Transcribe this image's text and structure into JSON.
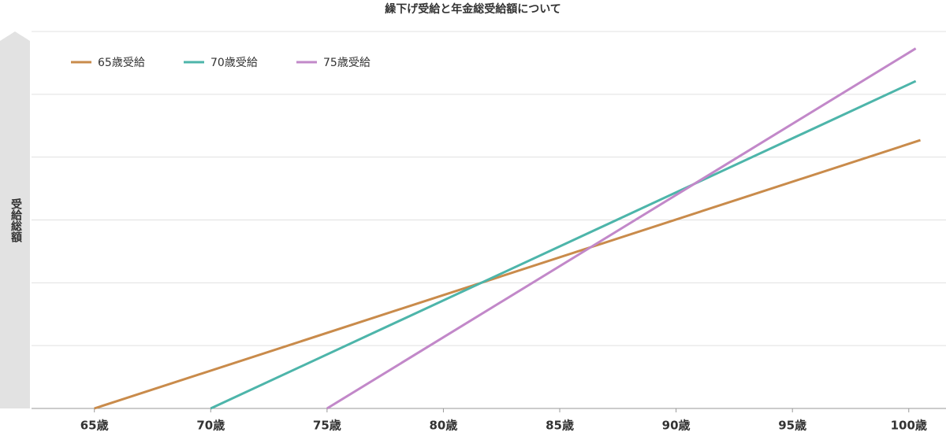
{
  "chart_data": {
    "type": "line",
    "title": "繰下げ受給と年金総受給額について",
    "ylabel": "受給総額",
    "xlim": [
      62.3,
      101.6
    ],
    "ylim": [
      0,
      6
    ],
    "xticks": [
      {
        "value": 65,
        "label": "65歳"
      },
      {
        "value": 70,
        "label": "70歳"
      },
      {
        "value": 75,
        "label": "75歳"
      },
      {
        "value": 80,
        "label": "80歳"
      },
      {
        "value": 85,
        "label": "85歳"
      },
      {
        "value": 90,
        "label": "90歳"
      },
      {
        "value": 95,
        "label": "95歳"
      },
      {
        "value": 100,
        "label": "100歳"
      }
    ],
    "yticks": [
      0,
      1,
      2,
      3,
      4,
      5,
      6
    ],
    "grid": true,
    "legend": "top-left",
    "series": [
      {
        "name": "65歳受給",
        "color": "#c98b4b",
        "x": [
          65,
          100.5
        ],
        "values": [
          0,
          4.27
        ]
      },
      {
        "name": "70歳受給",
        "color": "#4db5aa",
        "x": [
          70,
          100.3
        ],
        "values": [
          0,
          5.21
        ]
      },
      {
        "name": "75歳受給",
        "color": "#c288c9",
        "x": [
          75,
          100.3
        ],
        "values": [
          0,
          5.73
        ]
      }
    ]
  }
}
